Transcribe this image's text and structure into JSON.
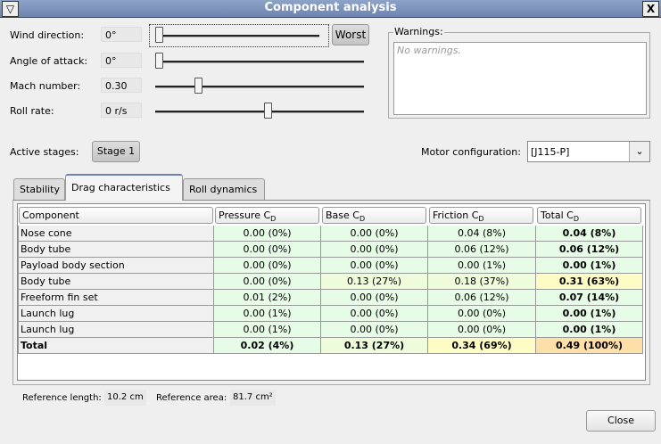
{
  "window": {
    "title": "Component analysis",
    "menu_icon": "triangle-down-icon",
    "close_icon": "close-icon"
  },
  "controls": [
    {
      "label": "Wind direction:",
      "value": "0°",
      "slider_fraction": 0.0
    },
    {
      "label": "Angle of attack:",
      "value": "0°",
      "slider_fraction": 0.0
    },
    {
      "label": "Mach number:",
      "value": "0.30",
      "slider_fraction": 0.12
    },
    {
      "label": "Roll rate:",
      "value": "0 r/s",
      "slider_fraction": 0.5
    }
  ],
  "worst_button": "Worst",
  "warnings": {
    "title": "Warnings:",
    "text": "No warnings."
  },
  "stages": {
    "label": "Active stages:",
    "button": "Stage 1"
  },
  "motor": {
    "label": "Motor configuration:",
    "value": "[J115-P]"
  },
  "tabs": [
    "Stability",
    "Drag characteristics",
    "Roll dynamics"
  ],
  "active_tab": 1,
  "table": {
    "headers": [
      "Component",
      "Pressure C",
      "Base C",
      "Friction C",
      "Total C"
    ],
    "header_sub": "D",
    "rows": [
      [
        "Nose cone",
        "0.00 (0%)",
        "0.00 (0%)",
        "0.04 (8%)",
        "0.04 (8%)"
      ],
      [
        "Body tube",
        "0.00 (0%)",
        "0.00 (0%)",
        "0.06 (12%)",
        "0.06 (12%)"
      ],
      [
        "Payload body section",
        "0.00 (0%)",
        "0.00 (0%)",
        "0.00 (1%)",
        "0.00 (1%)"
      ],
      [
        "Body tube",
        "0.00 (0%)",
        "0.13 (27%)",
        "0.18 (37%)",
        "0.31 (63%)"
      ],
      [
        "Freeform fin set",
        "0.01 (2%)",
        "0.00 (0%)",
        "0.06 (12%)",
        "0.07 (14%)"
      ],
      [
        "Launch lug",
        "0.00 (1%)",
        "0.00 (0%)",
        "0.00 (0%)",
        "0.00 (1%)"
      ],
      [
        "Launch lug",
        "0.00 (1%)",
        "0.00 (0%)",
        "0.00 (0%)",
        "0.00 (1%)"
      ],
      [
        "Total",
        "0.02 (4%)",
        "0.13 (27%)",
        "0.34 (69%)",
        "0.49 (100%)"
      ]
    ],
    "colors": {
      "low": "#e6fce6",
      "mid": "#eefcdc",
      "high": "#fcfcc4",
      "max": "#fce0a8"
    }
  },
  "reference": {
    "length_label": "Reference length:",
    "length": "10.2 cm",
    "area_label": "Reference area:",
    "area": "81.7 cm²"
  },
  "close_button": "Close"
}
